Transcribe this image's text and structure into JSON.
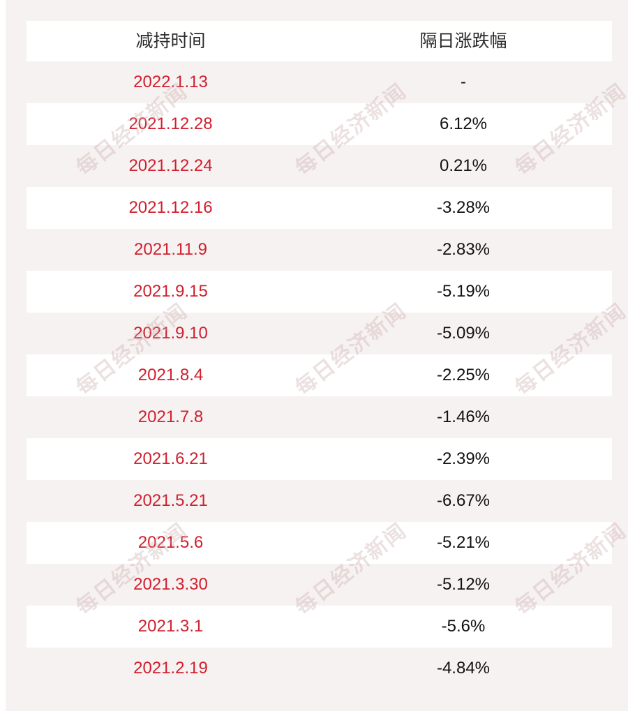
{
  "table": {
    "headers": [
      "减持时间",
      "隔日涨跌幅"
    ],
    "rows": [
      {
        "date": "2022.1.13",
        "change": "-"
      },
      {
        "date": "2021.12.28",
        "change": "6.12%"
      },
      {
        "date": "2021.12.24",
        "change": "0.21%"
      },
      {
        "date": "2021.12.16",
        "change": "-3.28%"
      },
      {
        "date": "2021.11.9",
        "change": "-2.83%"
      },
      {
        "date": "2021.9.15",
        "change": "-5.19%"
      },
      {
        "date": "2021.9.10",
        "change": "-5.09%"
      },
      {
        "date": "2021.8.4",
        "change": "-2.25%"
      },
      {
        "date": "2021.7.8",
        "change": "-1.46%"
      },
      {
        "date": "2021.6.21",
        "change": "-2.39%"
      },
      {
        "date": "2021.5.21",
        "change": "-6.67%"
      },
      {
        "date": "2021.5.6",
        "change": "-5.21%"
      },
      {
        "date": "2021.3.30",
        "change": "-5.12%"
      },
      {
        "date": "2021.3.1",
        "change": "-5.6%"
      },
      {
        "date": "2021.2.19",
        "change": "-4.84%"
      }
    ]
  },
  "watermark": "每日经济新闻",
  "colors": {
    "date_text": "#d0202f",
    "background": "#f7f2f2",
    "stripe": "#ffffff"
  }
}
